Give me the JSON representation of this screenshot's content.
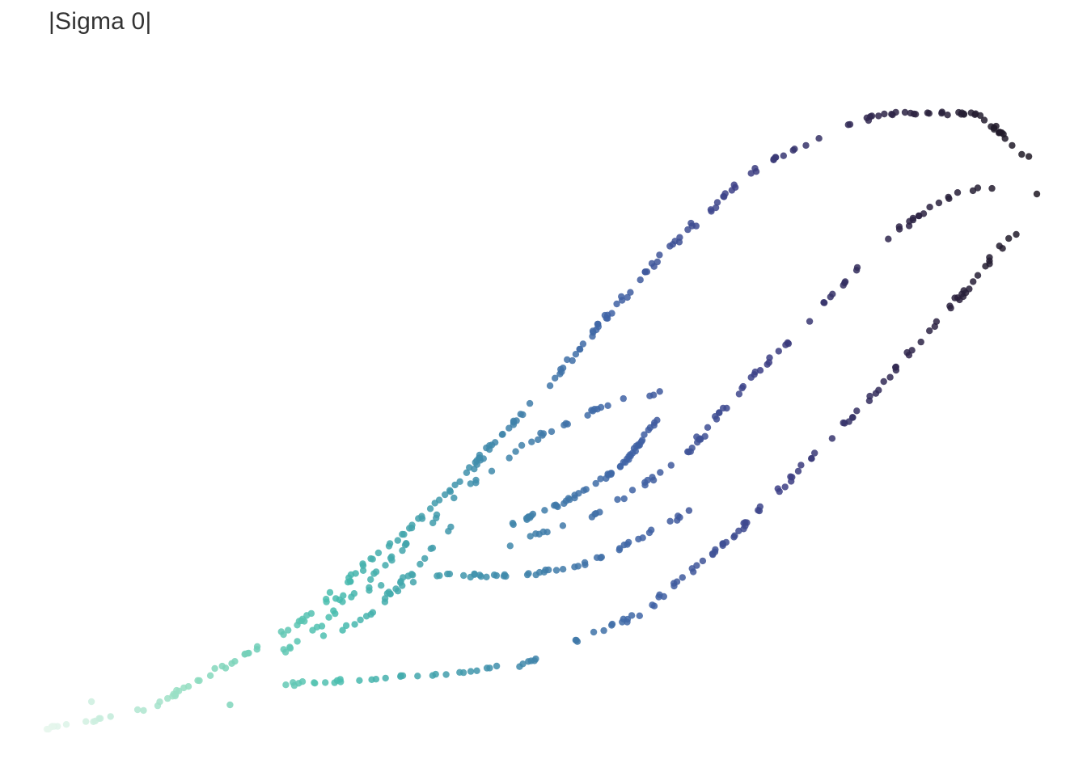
{
  "chart_data": {
    "type": "scatter",
    "title": "|Sigma 0|",
    "xlabel": "",
    "ylabel": "",
    "axes_visible": false,
    "grid": false,
    "legend": "none",
    "color_scale": [
      "#e9f7ee",
      "#8fdcbf",
      "#47bcae",
      "#3f8fab",
      "#4064a6",
      "#3d3f86",
      "#2e2448",
      "#1d1820"
    ],
    "xlim": [
      0,
      1
    ],
    "ylim": [
      0,
      1
    ],
    "curves": [
      {
        "name": "",
        "anchors": [
          [
            0.0,
            0.02
          ],
          [
            0.1,
            0.05
          ],
          [
            0.25,
            0.18
          ],
          [
            0.4,
            0.38
          ],
          [
            0.52,
            0.58
          ],
          [
            0.62,
            0.76
          ],
          [
            0.72,
            0.9
          ],
          [
            0.84,
            0.98
          ],
          [
            0.94,
            0.98
          ],
          [
            1.0,
            0.9
          ]
        ],
        "n": 220,
        "jitter": 0.003
      },
      {
        "name": "",
        "anchors": [
          [
            0.24,
            0.09
          ],
          [
            0.35,
            0.1
          ],
          [
            0.48,
            0.12
          ],
          [
            0.6,
            0.2
          ],
          [
            0.7,
            0.33
          ],
          [
            0.82,
            0.52
          ],
          [
            0.92,
            0.69
          ],
          [
            0.98,
            0.8
          ]
        ],
        "n": 135,
        "jitter": 0.003
      },
      {
        "name": "",
        "anchors": [
          [
            0.45,
            0.3
          ],
          [
            0.56,
            0.36
          ],
          [
            0.64,
            0.44
          ],
          [
            0.72,
            0.58
          ],
          [
            0.8,
            0.71
          ],
          [
            0.86,
            0.8
          ],
          [
            0.92,
            0.86
          ],
          [
            0.98,
            0.87
          ]
        ],
        "n": 80,
        "jitter": 0.003
      },
      {
        "name": "",
        "anchors": [
          [
            0.24,
            0.14
          ],
          [
            0.29,
            0.2
          ],
          [
            0.35,
            0.29
          ],
          [
            0.42,
            0.39
          ],
          [
            0.5,
            0.48
          ],
          [
            0.57,
            0.53
          ],
          [
            0.63,
            0.55
          ]
        ],
        "n": 55,
        "jitter": 0.003
      },
      {
        "name": "",
        "anchors": [
          [
            0.27,
            0.16
          ],
          [
            0.32,
            0.19
          ],
          [
            0.36,
            0.25
          ],
          [
            0.41,
            0.34
          ]
        ],
        "n": 28,
        "jitter": 0.003
      },
      {
        "name": "",
        "anchors": [
          [
            0.29,
            0.22
          ],
          [
            0.33,
            0.24
          ],
          [
            0.4,
            0.26
          ],
          [
            0.48,
            0.26
          ],
          [
            0.55,
            0.28
          ],
          [
            0.6,
            0.32
          ],
          [
            0.65,
            0.36
          ]
        ],
        "n": 55,
        "jitter": 0.003
      },
      {
        "name": "",
        "anchors": [
          [
            0.47,
            0.34
          ],
          [
            0.53,
            0.38
          ],
          [
            0.58,
            0.43
          ],
          [
            0.62,
            0.51
          ]
        ],
        "n": 55,
        "jitter": 0.0025
      }
    ],
    "outliers": [
      [
        0.045,
        0.063
      ],
      [
        0.185,
        0.058
      ],
      [
        0.0,
        0.02
      ],
      [
        1.0,
        0.855
      ]
    ]
  }
}
